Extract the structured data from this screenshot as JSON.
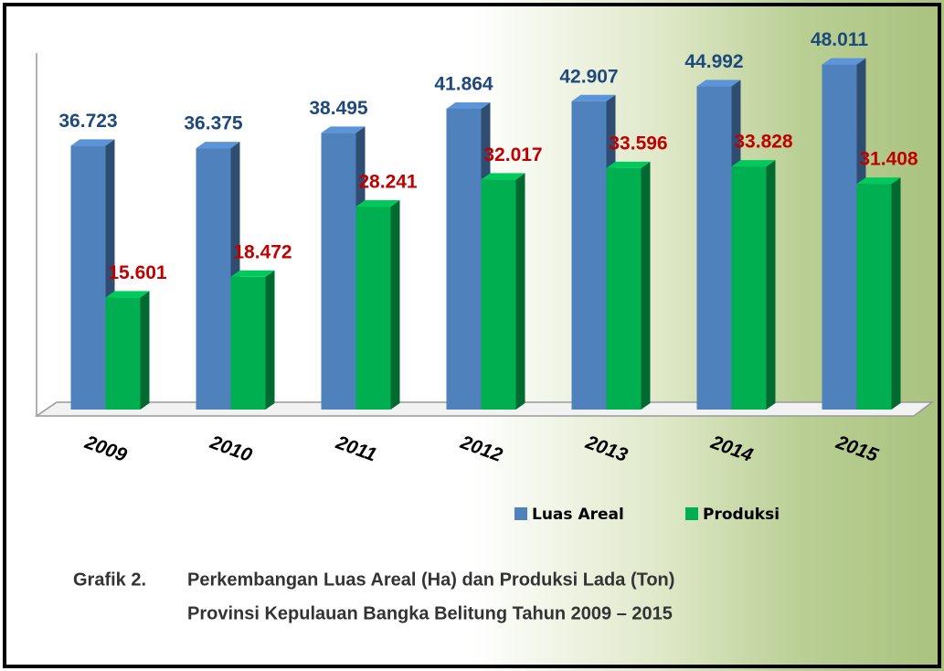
{
  "chart_data": {
    "type": "bar3d",
    "categories": [
      "2009",
      "2010",
      "2011",
      "2012",
      "2013",
      "2014",
      "2015"
    ],
    "series": [
      {
        "name": "Luas Areal",
        "color": "#4f81bd",
        "label_color": "#1f497d",
        "values": [
          36723,
          36375,
          38495,
          41864,
          42907,
          44992,
          48011
        ],
        "value_labels": [
          "36.723",
          "36.375",
          "38.495",
          "41.864",
          "42.907",
          "44.992",
          "48.011"
        ]
      },
      {
        "name": "Produksi",
        "color": "#00b050",
        "label_color": "#c00000",
        "values": [
          15601,
          18472,
          28241,
          32017,
          33596,
          33828,
          31408
        ],
        "value_labels": [
          "15.601",
          "18.472",
          "28.241",
          "32.017",
          "33.596",
          "33.828",
          "31.408"
        ]
      }
    ],
    "ylim": [
      0,
      50000
    ],
    "legend": "bottom",
    "caption_label": "Grafik 2.",
    "caption": [
      "Perkembangan Luas Areal (Ha) dan Produksi Lada (Ton)",
      "Provinsi Kepulauan Bangka Belitung Tahun 2009 – 2015"
    ]
  }
}
